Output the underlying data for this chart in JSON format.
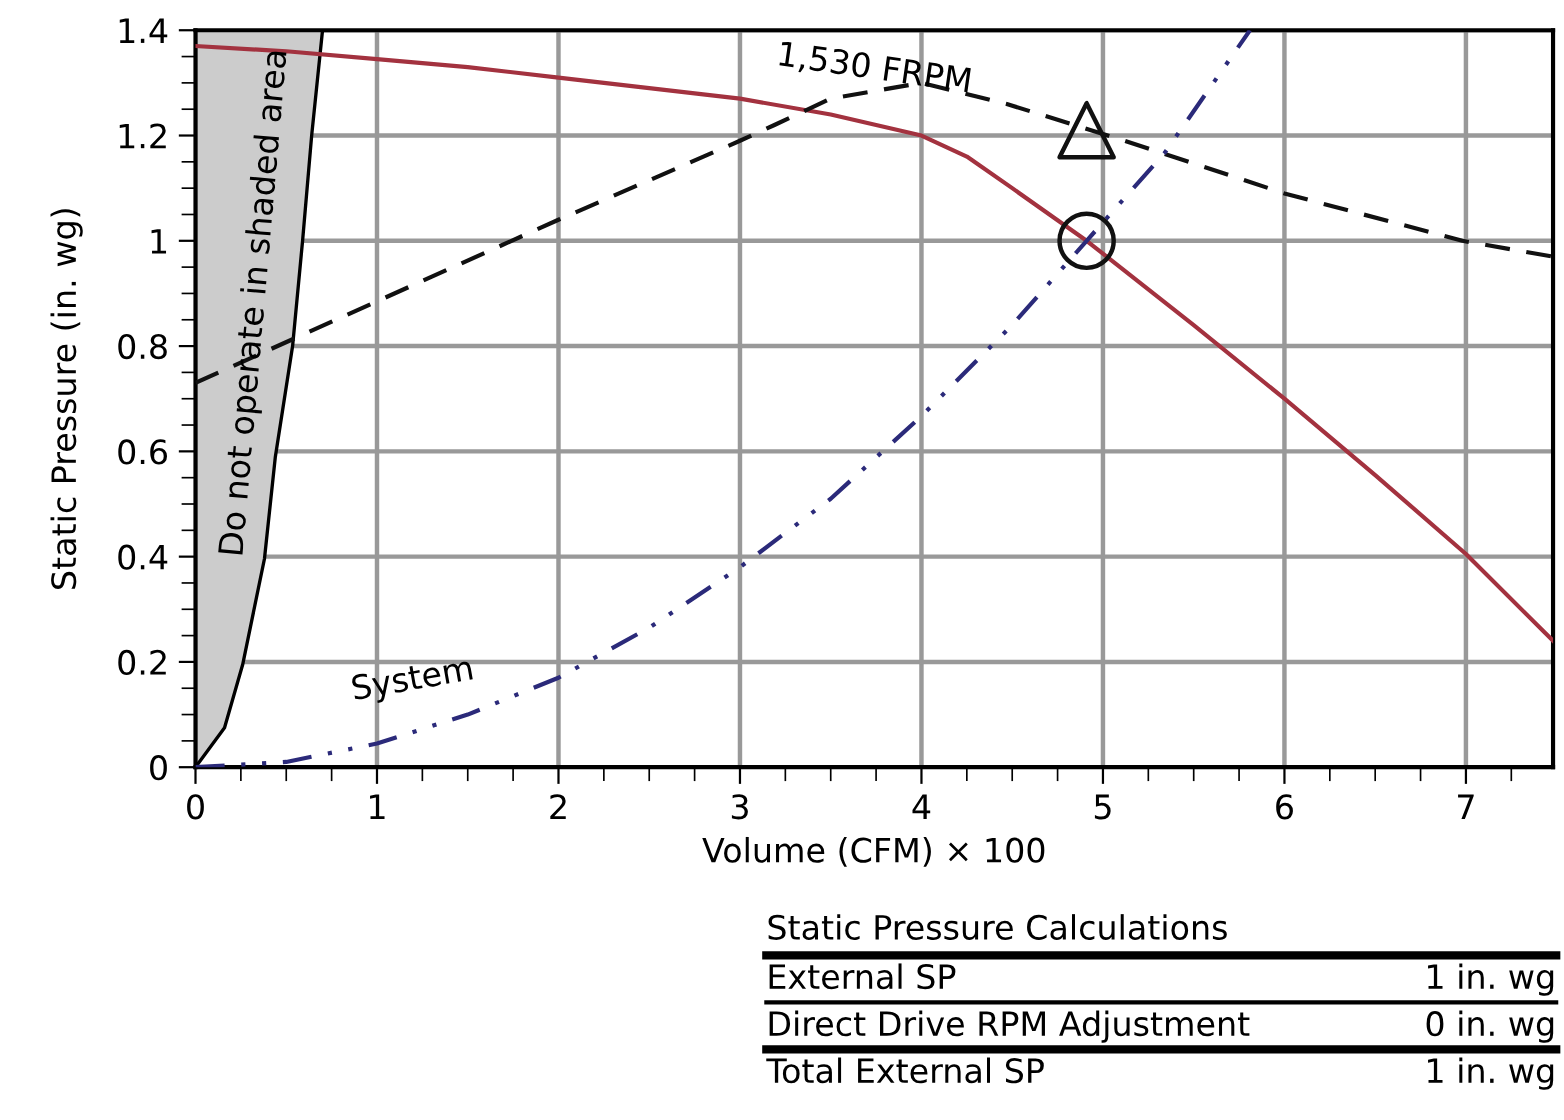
{
  "chart_data": {
    "type": "line",
    "xlabel": "Volume (CFM) × 100",
    "ylabel": "Static Pressure (in. wg)",
    "xlim": [
      0,
      7.48
    ],
    "ylim": [
      0,
      1.4
    ],
    "xticks": [
      0,
      1,
      2,
      3,
      4,
      5,
      6,
      7
    ],
    "yticks": [
      0,
      {
        "value": 0.2,
        "label": "0.2"
      },
      {
        "value": 0.4,
        "label": "0.4"
      },
      {
        "value": 0.6,
        "label": "0.6"
      },
      {
        "value": 0.8,
        "label": "0.8"
      },
      1,
      {
        "value": 1.2,
        "label": "1.2"
      },
      {
        "value": 1.4,
        "label": "1.4"
      }
    ],
    "grid": true,
    "series": [
      {
        "type": "area",
        "color": "#cccccc",
        "x": [
          0,
          0.16,
          0.26,
          0.38,
          0.44,
          0.535,
          0.59,
          0.64,
          0.7,
          0
        ],
        "values": [
          0,
          0.075,
          0.195,
          0.396,
          0.59,
          0.8,
          1.0,
          1.2,
          1.4,
          1.4
        ]
      },
      {
        "name": "1,530 FRPM",
        "color": "#a3323f",
        "line_style": "solid",
        "x": [
          0,
          0.5,
          1,
          1.5,
          2,
          2.5,
          3,
          3.5,
          4,
          4.25,
          4.5,
          4.91,
          5.5,
          6,
          6.5,
          7,
          7.48
        ],
        "values": [
          1.37,
          1.36,
          1.345,
          1.33,
          1.31,
          1.29,
          1.27,
          1.24,
          1.2,
          1.16,
          1.1,
          1.0,
          0.84,
          0.7,
          0.555,
          0.405,
          0.24
        ]
      },
      {
        "color": "#111111",
        "line_style": "dashed",
        "x": [
          0,
          1,
          2,
          3,
          3.19,
          3.5,
          4.0,
          4.47,
          5.12,
          6.0,
          6.98,
          7.48
        ],
        "values": [
          0.73,
          0.885,
          1.04,
          1.19,
          1.22,
          1.27,
          1.3,
          1.26,
          1.19,
          1.09,
          1.0,
          0.97
        ]
      },
      {
        "name": "System",
        "color": "#2b2a7a",
        "line_style": "dashdot",
        "x": [
          0,
          0.5,
          1,
          1.5,
          2,
          2.5,
          3,
          3.5,
          4,
          4.5,
          4.91,
          5.34,
          5.81
        ],
        "values": [
          0,
          0.01,
          0.045,
          0.1,
          0.17,
          0.265,
          0.38,
          0.51,
          0.667,
          0.84,
          1.0,
          1.167,
          1.4
        ]
      },
      {
        "type": "scatter",
        "color": "#111111",
        "marker": "triangle",
        "x": [
          4.91
        ],
        "values": [
          1.21
        ]
      },
      {
        "type": "scatter",
        "color": "#111111",
        "marker": "circle",
        "x": [
          4.91
        ],
        "values": [
          1.0
        ]
      }
    ],
    "annotations": [
      "Do not operate in shaded area",
      "Static Pressure Calculations",
      "External SP",
      "1 in. wg",
      "Direct Drive RPM Adjustment",
      "0 in. wg",
      "Total External SP",
      "1 in. wg"
    ]
  }
}
